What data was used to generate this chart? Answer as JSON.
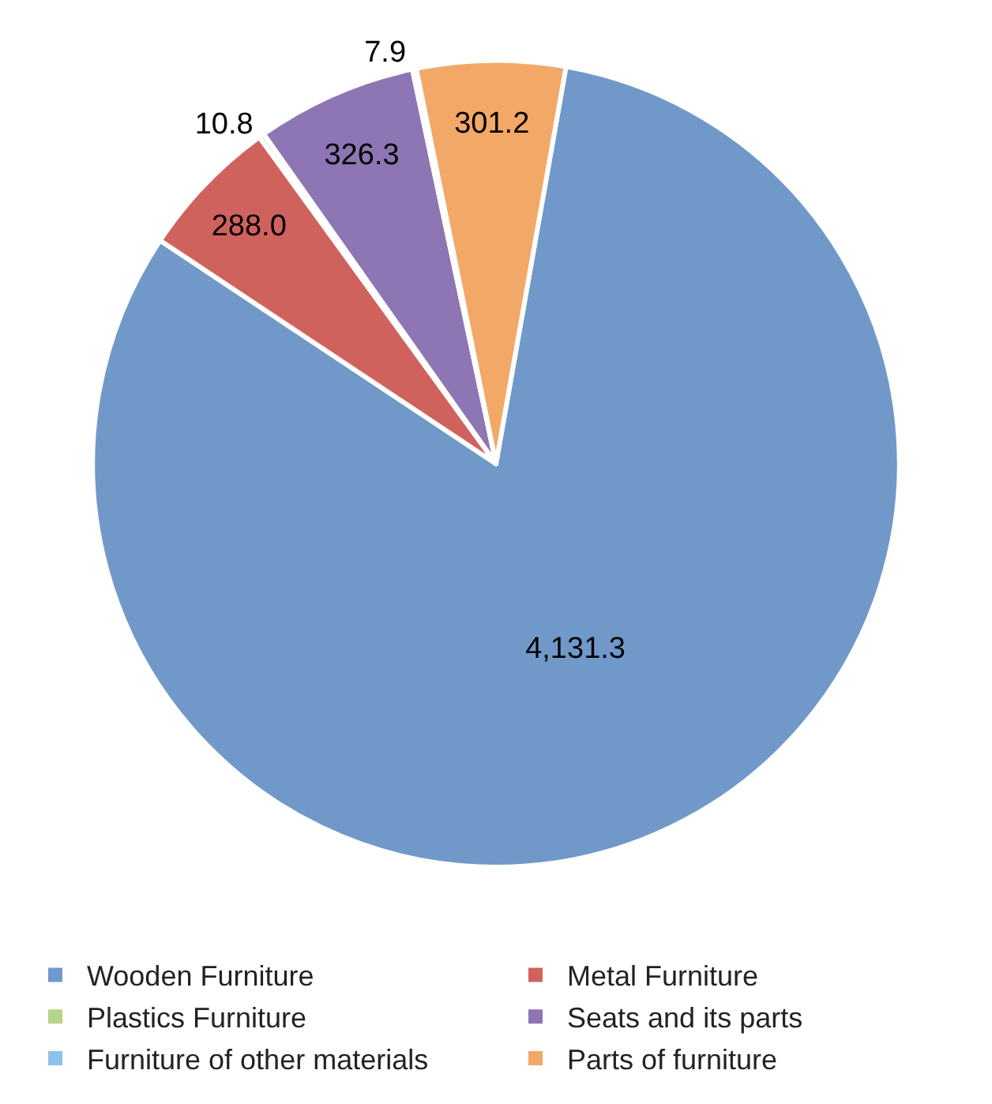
{
  "chart_data": {
    "type": "pie",
    "categories": [
      "Wooden Furniture",
      "Metal Furniture",
      "Plastics Furniture",
      "Seats and its parts",
      "Furniture of other materials",
      "Parts of furniture"
    ],
    "values": [
      4131.3,
      288.0,
      10.8,
      326.3,
      7.9,
      301.2
    ],
    "value_labels": [
      "4,131.3",
      "288.0",
      "10.8",
      "326.3",
      "7.9",
      "301.2"
    ],
    "colors": [
      "#7099c9",
      "#d0625e",
      "#b5d58a",
      "#8d76b3",
      "#8ec3e9",
      "#f2a867"
    ],
    "legend": "bottom"
  }
}
